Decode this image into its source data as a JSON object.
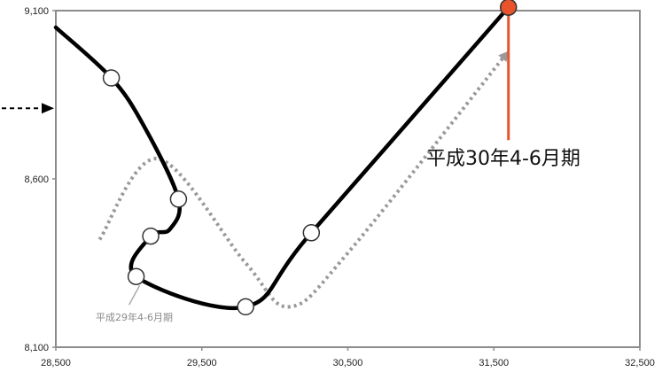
{
  "chart_data": {
    "type": "line",
    "xlim": [
      28500,
      32500
    ],
    "ylim": [
      8100,
      9100
    ],
    "x_ticks": [
      28500,
      29500,
      30500,
      31500,
      32500
    ],
    "y_ticks": [
      8100,
      8600,
      9100
    ],
    "x_tick_labels": [
      "28,500",
      "29,500",
      "30,500",
      "31,500",
      "32,500"
    ],
    "y_tick_labels": [
      "8,100",
      "8,600",
      "9,100"
    ],
    "grid": false,
    "series": [
      {
        "style": "solid",
        "color": "#000000",
        "points": [
          {
            "x": 28500,
            "y": 9050
          },
          {
            "x": 28880,
            "y": 8900,
            "marker": "hollow"
          },
          {
            "x": 29100,
            "y": 8760
          },
          {
            "x": 29340,
            "y": 8540,
            "marker": "hollow"
          },
          {
            "x": 29280,
            "y": 8450
          },
          {
            "x": 29150,
            "y": 8430,
            "marker": "hollow"
          },
          {
            "x": 29050,
            "y": 8310,
            "marker": "hollow"
          },
          {
            "x": 29800,
            "y": 8220,
            "marker": "hollow"
          },
          {
            "x": 30250,
            "y": 8440,
            "marker": "hollow"
          },
          {
            "x": 31600,
            "y": 9110,
            "marker": "filled"
          }
        ]
      },
      {
        "style": "dotted",
        "color": "#999999",
        "points": [
          {
            "x": 28800,
            "y": 8420
          },
          {
            "x": 29200,
            "y": 8660
          },
          {
            "x": 29800,
            "y": 8350
          },
          {
            "x": 30100,
            "y": 8220
          },
          {
            "x": 30500,
            "y": 8380
          },
          {
            "x": 31600,
            "y": 8980
          }
        ]
      }
    ],
    "annotations": [
      {
        "text": "平成30年4-6月期",
        "x": 31600,
        "y": 9110,
        "color": "#e8532b"
      },
      {
        "text": "平成29年4-6月期",
        "x": 29050,
        "y": 8310,
        "color": "#999999"
      }
    ],
    "colors": {
      "highlight": "#e8532b",
      "axis_frame": "#8c8c8c"
    },
    "left_marker_y": 8810
  }
}
